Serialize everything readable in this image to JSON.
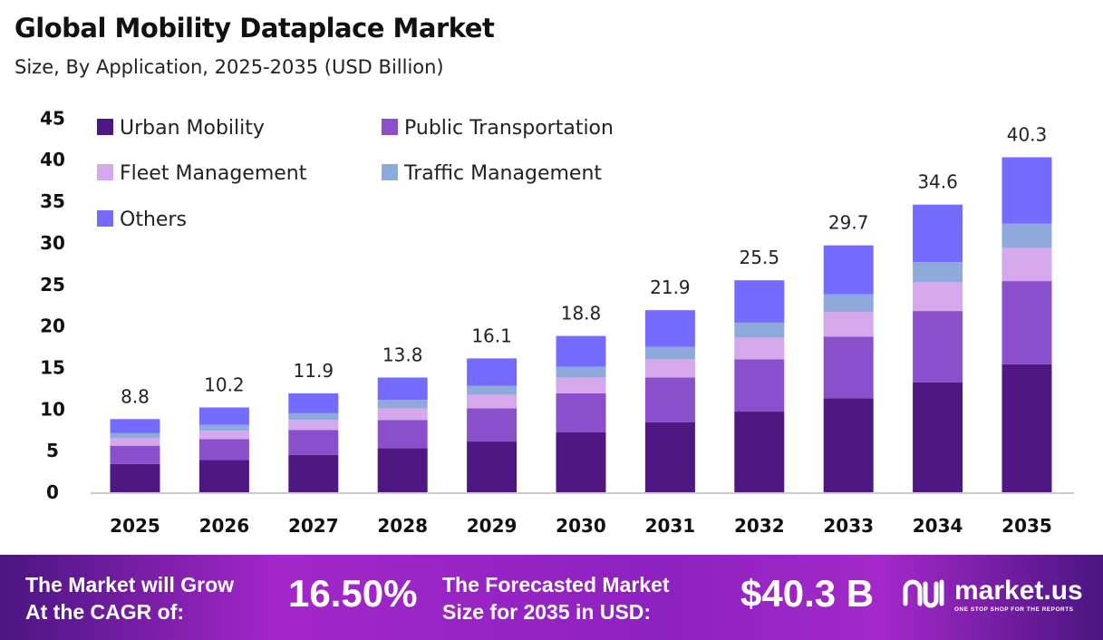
{
  "chart_data": {
    "type": "bar",
    "stacked": true,
    "title": "Global Mobility Dataplace Market",
    "subtitle": "Size, By Application, 2025-2035 (USD Billion)",
    "categories": [
      "2025",
      "2026",
      "2027",
      "2028",
      "2029",
      "2030",
      "2031",
      "2032",
      "2033",
      "2034",
      "2035"
    ],
    "series": [
      {
        "name": "Urban Mobility",
        "color": "#4e1781",
        "values": [
          3.4,
          3.9,
          4.5,
          5.3,
          6.1,
          7.2,
          8.4,
          9.7,
          11.3,
          13.2,
          15.4
        ]
      },
      {
        "name": "Public Transportation",
        "color": "#8b4fcc",
        "values": [
          2.2,
          2.5,
          3.0,
          3.4,
          4.0,
          4.7,
          5.4,
          6.3,
          7.4,
          8.6,
          10.0
        ]
      },
      {
        "name": "Fleet Management",
        "color": "#d4a8ea",
        "values": [
          0.9,
          1.0,
          1.2,
          1.4,
          1.6,
          1.9,
          2.2,
          2.6,
          3.0,
          3.5,
          4.0
        ]
      },
      {
        "name": "Traffic Management",
        "color": "#8eaadc",
        "values": [
          0.6,
          0.7,
          0.8,
          1.0,
          1.1,
          1.3,
          1.5,
          1.8,
          2.1,
          2.4,
          2.9
        ]
      },
      {
        "name": "Others",
        "color": "#756bff",
        "values": [
          1.7,
          2.1,
          2.4,
          2.7,
          3.3,
          3.7,
          4.4,
          5.1,
          5.9,
          6.9,
          8.0
        ]
      }
    ],
    "totals": [
      "8.8",
      "10.2",
      "11.9",
      "13.8",
      "16.1",
      "18.8",
      "21.9",
      "25.5",
      "29.7",
      "34.6",
      "40.3"
    ],
    "yticks": [
      "0",
      "5",
      "10",
      "15",
      "20",
      "25",
      "30",
      "35",
      "40",
      "45"
    ],
    "ylim": [
      0,
      45
    ],
    "grid": false,
    "legend": "top-left"
  },
  "banner": {
    "cagr_label_1": "The Market will Grow",
    "cagr_label_2": "At the CAGR of:",
    "cagr_value": "16.50%",
    "forecast_label_1": "The Forecasted Market",
    "forecast_label_2": "Size for 2035 in USD:",
    "forecast_value": "$40.3 B",
    "logo_text": "market.us",
    "logo_tagline": "ONE STOP SHOP FOR THE REPORTS"
  }
}
